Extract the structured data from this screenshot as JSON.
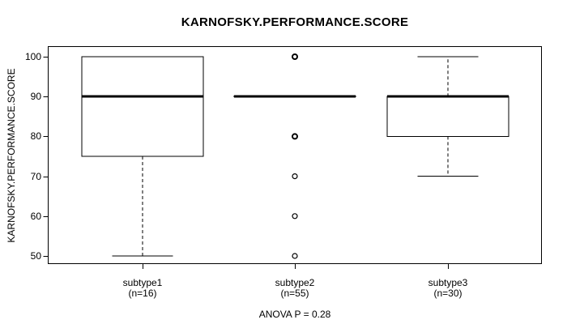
{
  "title": "KARNOFSKY.PERFORMANCE.SCORE",
  "chart_data": {
    "type": "boxplot",
    "title": "KARNOFSKY.PERFORMANCE.SCORE",
    "ylabel": "KARNOFSKY.PERFORMANCE.SCORE",
    "xlabel": "",
    "annotation": "ANOVA P = 0.28",
    "ylim": [
      48,
      102.5
    ],
    "yticks": [
      100,
      90,
      80,
      70,
      60,
      50
    ],
    "grid": false,
    "legend": "none",
    "line_color": "#000000",
    "background_color": "#ffffff",
    "groups": [
      {
        "label": "subtype1",
        "sublabel": "(n=16)",
        "n": 16,
        "q1": 75,
        "median": 90,
        "q3": 100,
        "whisker_low": 50,
        "whisker_high": 100,
        "outliers": [],
        "outliers_bold": []
      },
      {
        "label": "subtype2",
        "sublabel": "(n=55)",
        "n": 55,
        "q1": 90,
        "median": 90,
        "q3": 90,
        "whisker_low": 90,
        "whisker_high": 90,
        "outliers": [
          100,
          80,
          70,
          60,
          50
        ],
        "outliers_bold": [
          100,
          80
        ]
      },
      {
        "label": "subtype3",
        "sublabel": "(n=30)",
        "n": 30,
        "q1": 80,
        "median": 90,
        "q3": 90,
        "whisker_low": 70,
        "whisker_high": 100,
        "outliers": [],
        "outliers_bold": []
      }
    ]
  }
}
